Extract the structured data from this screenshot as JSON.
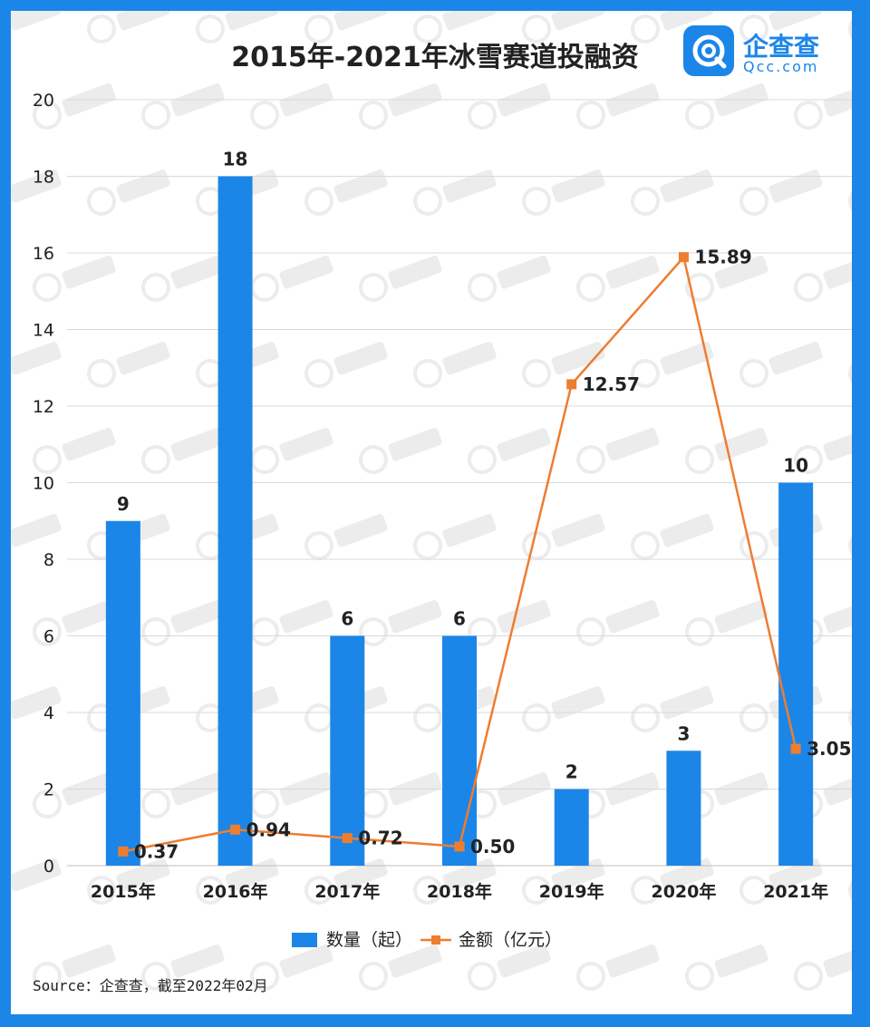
{
  "title": "2015年-2021年冰雪赛道投融资",
  "brand": {
    "name_cn": "企查查",
    "name_en": "Qcc.com",
    "color": "#1c86e8"
  },
  "source": "Source：企查查，截至2022年02月",
  "chart_data": {
    "type": "bar",
    "categories": [
      "2015年",
      "2016年",
      "2017年",
      "2018年",
      "2019年",
      "2020年",
      "2021年"
    ],
    "series": [
      {
        "name": "数量（起）",
        "type": "bar",
        "color": "#1c86e8",
        "values": [
          9,
          18,
          6,
          6,
          2,
          3,
          10
        ],
        "labels": [
          "9",
          "18",
          "6",
          "6",
          "2",
          "3",
          "10"
        ]
      },
      {
        "name": "金额（亿元）",
        "type": "line",
        "color": "#ed7d31",
        "values": [
          0.37,
          0.94,
          0.72,
          0.5,
          12.57,
          15.89,
          3.05
        ],
        "labels": [
          "0.37",
          "0.94",
          "0.72",
          "0.50",
          "12.57",
          "15.89",
          "3.05"
        ]
      }
    ],
    "ylim": [
      0,
      20
    ],
    "yticks": [
      "0",
      "2",
      "4",
      "6",
      "8",
      "10",
      "12",
      "14",
      "16",
      "18",
      "20"
    ],
    "xlabel": "",
    "ylabel": "",
    "grid": true,
    "legend": "bottom"
  }
}
